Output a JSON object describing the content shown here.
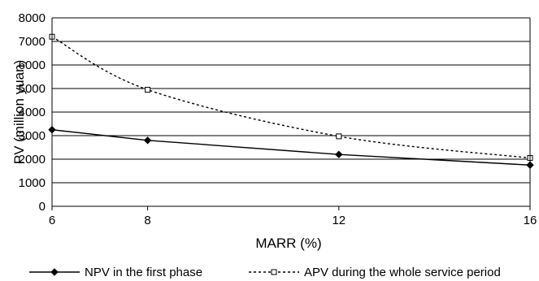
{
  "chart_data": {
    "type": "line",
    "xlabel": "MARR (%)",
    "ylabel": "PV (million yuan)",
    "x": [
      6,
      8,
      12,
      16
    ],
    "x_tick_labels": [
      "6",
      "8",
      "12",
      "16"
    ],
    "y_tick_labels": [
      "0",
      "1000",
      "2000",
      "3000",
      "4000",
      "5000",
      "6000",
      "7000",
      "8000"
    ],
    "ylim": [
      0,
      8000
    ],
    "grid": "horizontal",
    "legend_placement": "bottom",
    "series": [
      {
        "name": "NPV in the first phase",
        "style": "solid",
        "marker": "diamond-filled",
        "color": "#000000",
        "values": [
          3250,
          2800,
          2200,
          1750
        ]
      },
      {
        "name": "APV during the whole service period",
        "style": "dotted",
        "marker": "square-open",
        "color": "#000000",
        "values": [
          7200,
          4950,
          2970,
          2050
        ]
      }
    ]
  }
}
